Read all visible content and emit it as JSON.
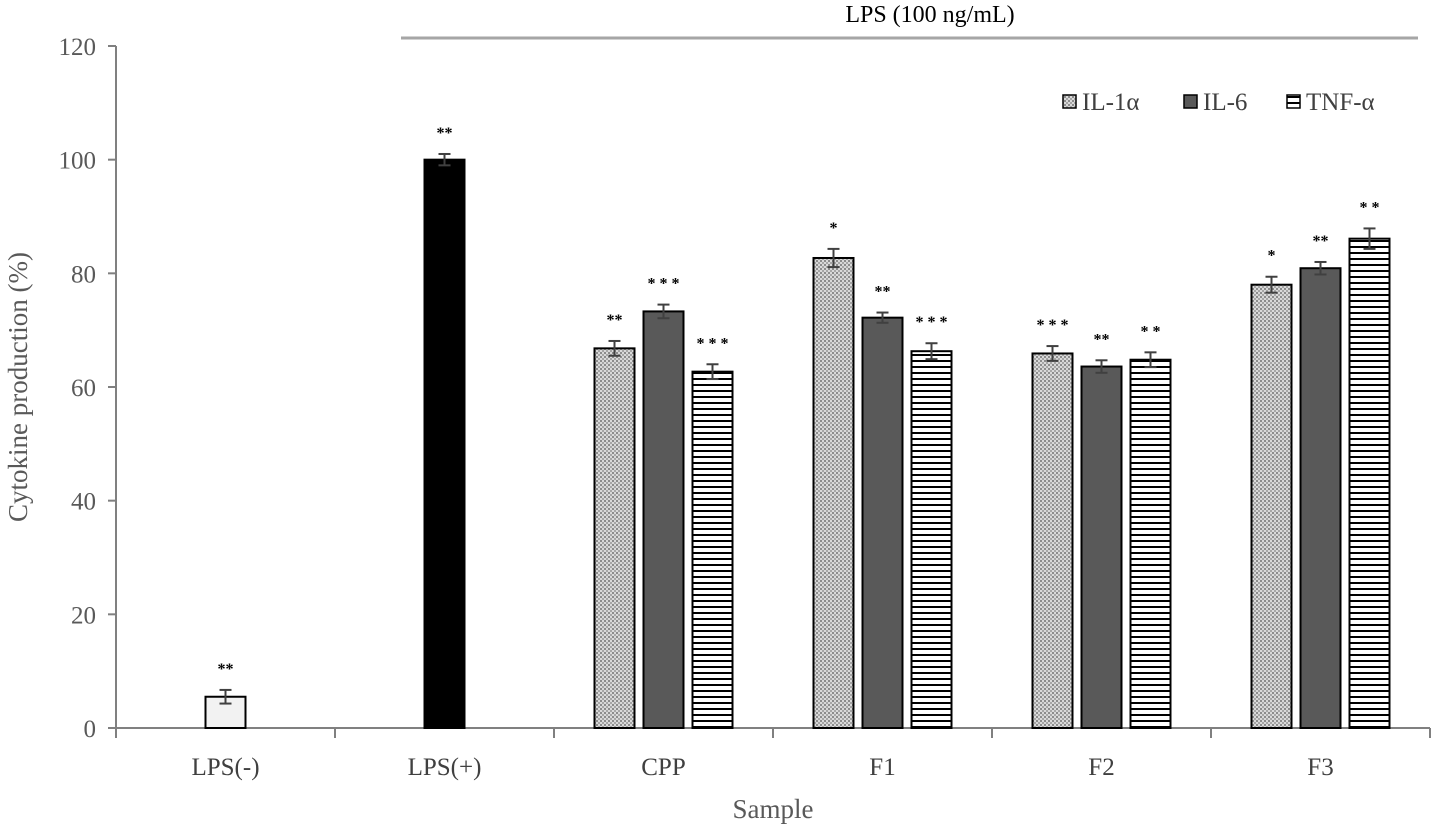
{
  "chart_data": {
    "type": "bar",
    "xlabel": "Sample",
    "ylabel": "Cytokine production (%)",
    "ylim": [
      0,
      120
    ],
    "yticks": [
      "0",
      "20",
      "40",
      "60",
      "80",
      "100",
      "120"
    ],
    "grid": false,
    "legend_position": "top-right",
    "bracket_label": "LPS (100 ng/mL)",
    "categories": [
      "LPS(-)",
      "LPS(+)",
      "CPP",
      "F1",
      "F2",
      "F3"
    ],
    "series": [
      {
        "name": "IL-1α",
        "pattern": "dotted"
      },
      {
        "name": "IL-6",
        "pattern": "solid-dark"
      },
      {
        "name": "TNF-α",
        "pattern": "horizontal-lines"
      }
    ],
    "controls": [
      {
        "category": "LPS(-)",
        "value": 5.5,
        "error": 1.2,
        "significance": "**",
        "fill": "#f2f2f2"
      },
      {
        "category": "LPS(+)",
        "value": 100,
        "error": 1.0,
        "significance": "**",
        "fill": "#000000"
      }
    ],
    "groups": [
      {
        "category": "CPP",
        "bars": [
          {
            "series": "IL-1α",
            "value": 66.8,
            "error": 1.3,
            "significance": "**"
          },
          {
            "series": "IL-6",
            "value": 73.3,
            "error": 1.2,
            "significance": "* * *"
          },
          {
            "series": "TNF-α",
            "value": 62.7,
            "error": 1.3,
            "significance": "* * *"
          }
        ]
      },
      {
        "category": "F1",
        "bars": [
          {
            "series": "IL-1α",
            "value": 82.7,
            "error": 1.6,
            "significance": "*"
          },
          {
            "series": "IL-6",
            "value": 72.2,
            "error": 0.9,
            "significance": "**"
          },
          {
            "series": "TNF-α",
            "value": 66.3,
            "error": 1.4,
            "significance": "* * *"
          }
        ]
      },
      {
        "category": "F2",
        "bars": [
          {
            "series": "IL-1α",
            "value": 65.9,
            "error": 1.3,
            "significance": "* * *"
          },
          {
            "series": "IL-6",
            "value": 63.6,
            "error": 1.1,
            "significance": "**"
          },
          {
            "series": "TNF-α",
            "value": 64.8,
            "error": 1.3,
            "significance": "* *"
          }
        ]
      },
      {
        "category": "F3",
        "bars": [
          {
            "series": "IL-1α",
            "value": 78.0,
            "error": 1.4,
            "significance": "*"
          },
          {
            "series": "IL-6",
            "value": 80.9,
            "error": 1.1,
            "significance": "**"
          },
          {
            "series": "TNF-α",
            "value": 86.1,
            "error": 1.8,
            "significance": "* *"
          }
        ]
      }
    ],
    "colors": {
      "axis": "#808080",
      "bar_stroke": "#000000",
      "il6_fill": "#595959",
      "dotted_fill": "#c8c8c8",
      "bracket_line": "#a6a6a6"
    }
  }
}
